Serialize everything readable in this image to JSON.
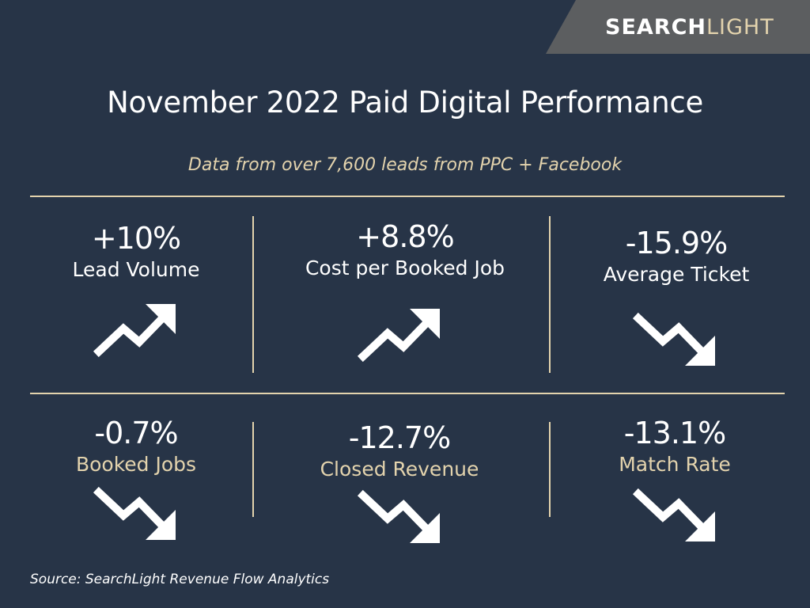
{
  "brand": {
    "part1": "SEARCH",
    "part2": "LIGHT"
  },
  "title": "November 2022 Paid Digital Performance",
  "subtitle": "Data from over 7,600 leads from PPC + Facebook",
  "colors": {
    "background": "#273447",
    "accent": "#e3d3ad",
    "brand_tab": "#5c5e60",
    "text": "#ffffff"
  },
  "metrics": [
    {
      "value": "+10%",
      "label": "Lead Volume",
      "trend": "up",
      "icon": "trend-up-icon"
    },
    {
      "value": "+8.8%",
      "label": "Cost per Booked Job",
      "trend": "up",
      "icon": "trend-up-icon"
    },
    {
      "value": "-15.9%",
      "label": "Average Ticket",
      "trend": "down",
      "icon": "trend-down-icon"
    },
    {
      "value": "-0.7%",
      "label": "Booked Jobs",
      "trend": "down",
      "icon": "trend-down-icon"
    },
    {
      "value": "-12.7%",
      "label": "Closed Revenue",
      "trend": "down",
      "icon": "trend-down-icon"
    },
    {
      "value": "-13.1%",
      "label": "Match Rate",
      "trend": "down",
      "icon": "trend-down-icon"
    }
  ],
  "source": "Source: SearchLight Revenue Flow Analytics"
}
